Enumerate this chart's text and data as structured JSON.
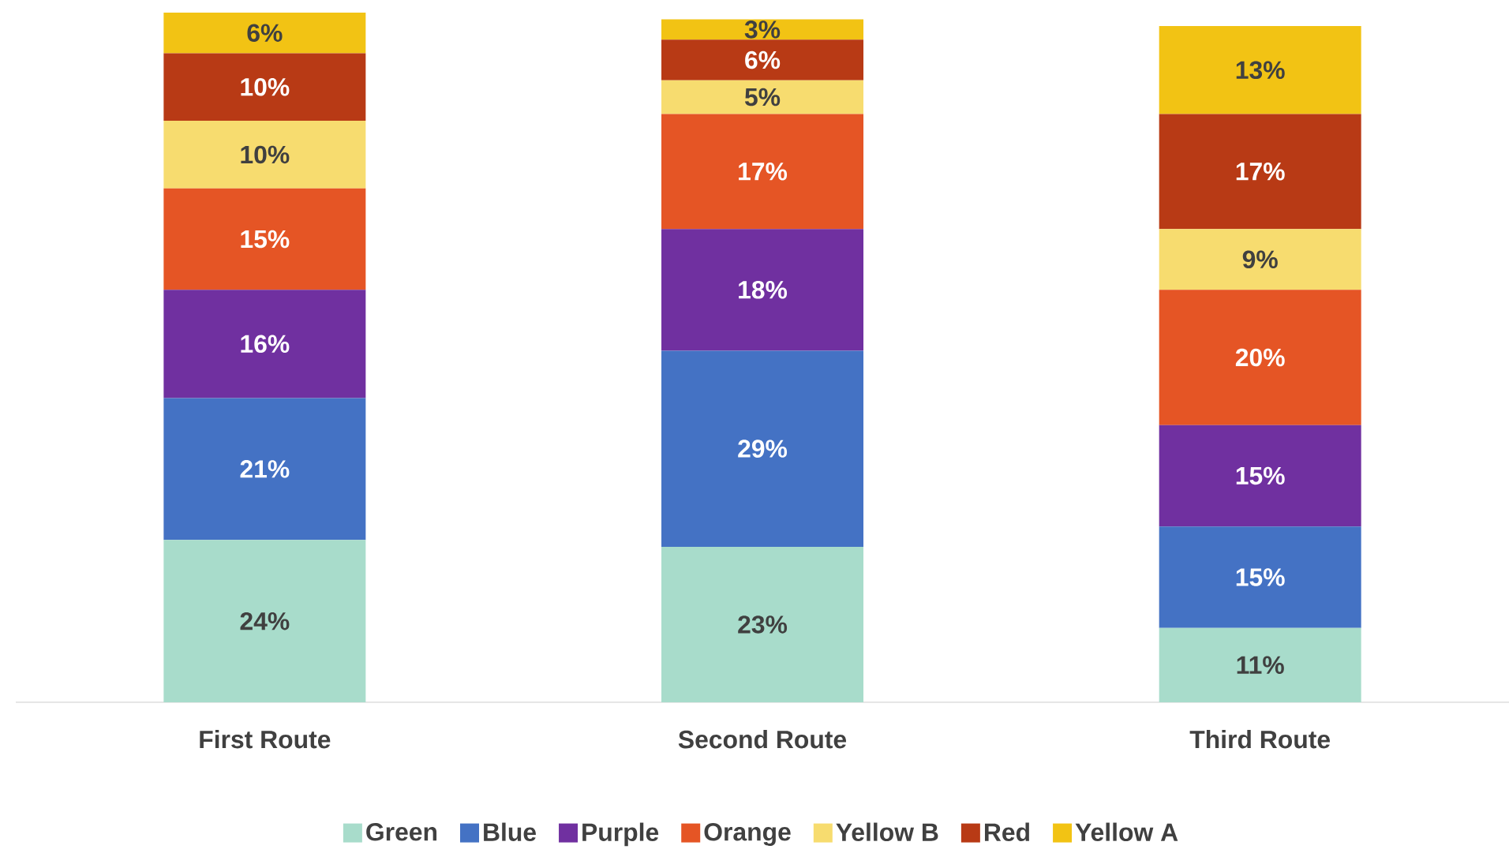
{
  "chart_data": {
    "type": "bar",
    "stacked": true,
    "categories": [
      "First Route",
      "Second Route",
      "Third Route"
    ],
    "series": [
      {
        "name": "Green",
        "color": "#a8dccb",
        "values": [
          24,
          23,
          11
        ],
        "value_labels": [
          "24%",
          "23%",
          "11%"
        ]
      },
      {
        "name": "Blue",
        "color": "#4472c4",
        "values": [
          21,
          29,
          15
        ],
        "value_labels": [
          "21%",
          "29%",
          "15%"
        ]
      },
      {
        "name": "Purple",
        "color": "#7030a0",
        "values": [
          16,
          18,
          15
        ],
        "value_labels": [
          "16%",
          "18%",
          "15%"
        ]
      },
      {
        "name": "Orange",
        "color": "#e55525",
        "values": [
          15,
          17,
          20
        ],
        "value_labels": [
          "15%",
          "17%",
          "20%"
        ]
      },
      {
        "name": "Yellow B",
        "color": "#f7dc6f",
        "values": [
          10,
          5,
          9
        ],
        "value_labels": [
          "10%",
          "5%",
          "9%"
        ]
      },
      {
        "name": "Red",
        "color": "#b83a15",
        "values": [
          10,
          6,
          17
        ],
        "value_labels": [
          "10%",
          "6%",
          "17%"
        ]
      },
      {
        "name": "Yellow A",
        "color": "#f2c314",
        "values": [
          6,
          3,
          13
        ],
        "value_labels": [
          "6%",
          "3%",
          "13%"
        ]
      }
    ],
    "legend": "bottom"
  }
}
